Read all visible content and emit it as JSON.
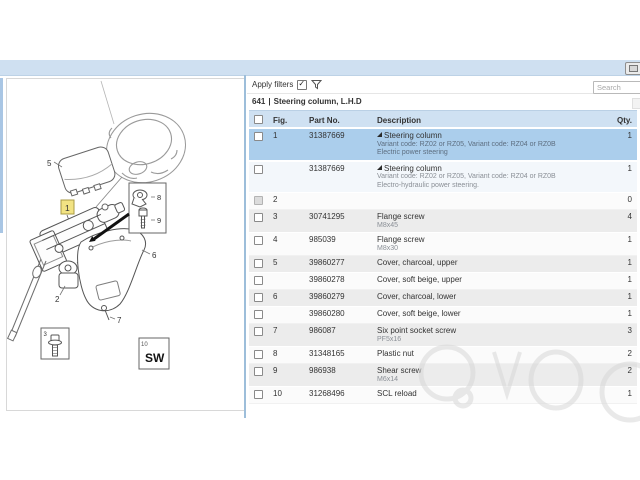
{
  "toolbar": {
    "apply_filters_label": "Apply filters",
    "filter_checked_glyph": "✓",
    "search_placeholder": "Search"
  },
  "header": {
    "code": "641",
    "separator": "|",
    "name": "Steering column, L.H.D"
  },
  "table": {
    "headers": {
      "fig": "Fig.",
      "part_no": "Part No.",
      "description": "Description",
      "qty": "Qty."
    },
    "rows": [
      {
        "fig": "1",
        "part_no": "31387669",
        "description": "Steering column",
        "expandable": true,
        "variant": "Variant code: RZ02 or RZ05, Variant code: RZ04 or RZ0B",
        "note": "Electric power steering",
        "qty": "1",
        "selected": true
      },
      {
        "fig": "",
        "part_no": "31387669",
        "description": "Steering column",
        "expandable": true,
        "variant": "Variant code: RZ02 or RZ05, Variant code: RZ04 or RZ0B",
        "note": "Electro-hydraulic power steering.",
        "qty": "1"
      },
      {
        "fig": "2",
        "part_no": "",
        "description": "",
        "qty": "0",
        "disabled": true
      },
      {
        "fig": "3",
        "part_no": "30741295",
        "description": "Flange screw",
        "note": "M8x45",
        "qty": "4"
      },
      {
        "fig": "4",
        "part_no": "985039",
        "description": "Flange screw",
        "note": "M8x30",
        "qty": "1"
      },
      {
        "fig": "5",
        "part_no": "39860277",
        "description": "Cover, charcoal, upper",
        "qty": "1"
      },
      {
        "fig": "",
        "part_no": "39860278",
        "description": "Cover, soft beige, upper",
        "qty": "1"
      },
      {
        "fig": "6",
        "part_no": "39860279",
        "description": "Cover, charcoal, lower",
        "qty": "1"
      },
      {
        "fig": "",
        "part_no": "39860280",
        "description": "Cover, soft beige, lower",
        "qty": "1"
      },
      {
        "fig": "7",
        "part_no": "986087",
        "description": "Six point socket screw",
        "note": "PF5x16",
        "qty": "3"
      },
      {
        "fig": "8",
        "part_no": "31348165",
        "description": "Plastic nut",
        "qty": "2"
      },
      {
        "fig": "9",
        "part_no": "986938",
        "description": "Shear screw",
        "note": "M6x14",
        "qty": "2"
      },
      {
        "fig": "10",
        "part_no": "31268496",
        "description": "SCL reload",
        "qty": "1"
      }
    ]
  },
  "diagram": {
    "callouts": {
      "c1": "1",
      "c2": "2",
      "c3": "3",
      "c5": "5",
      "c6": "6",
      "c7": "7",
      "c8": "8",
      "c9": "9",
      "c10": "10",
      "sw": "SW"
    }
  },
  "colors": {
    "band": "#cfe0f1",
    "table_header_bg": "#cfe1f2",
    "selected_row_bg": "#abceec",
    "divider": "#9dbeda",
    "callout_highlight": "#f2e383"
  }
}
